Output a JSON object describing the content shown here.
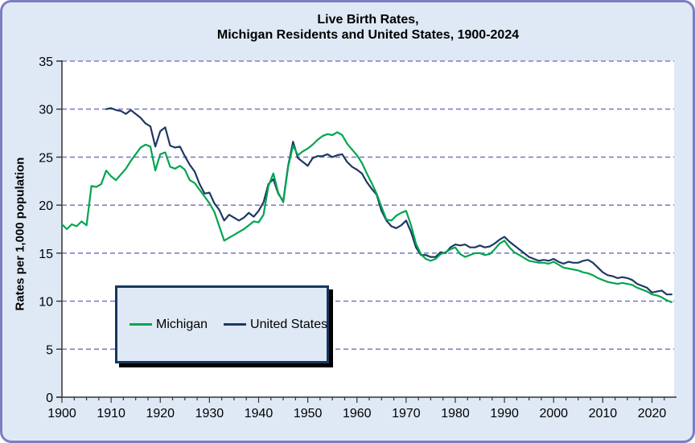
{
  "title": {
    "line1": "Live Birth Rates,",
    "line2": "Michigan Residents and United States, 1900-2024"
  },
  "colors": {
    "page_background": "#dfe9f5",
    "outer_border": "#7d7dc1",
    "plot_background": "#ffffff",
    "gridline": "#7f7fc8",
    "axis": "#333333",
    "michigan_line": "#00a550",
    "us_line": "#1f3864",
    "legend_border": "#17375e",
    "legend_shadow": "#000000",
    "text": "#000000"
  },
  "chart_data": {
    "type": "line",
    "title": "Live Birth Rates, Michigan Residents and United States, 1900-2024",
    "xlabel": "",
    "ylabel": "Rates per 1,000 population",
    "xlim": [
      1900,
      2024.5
    ],
    "ylim": [
      0,
      35
    ],
    "x_start_year": 1900,
    "x_ticks": [
      1900,
      1910,
      1920,
      1930,
      1940,
      1950,
      1960,
      1970,
      1980,
      1990,
      2000,
      2010,
      2020
    ],
    "x_minor_tick_step": 2.5,
    "y_ticks": [
      0,
      5,
      10,
      15,
      20,
      25,
      30,
      35
    ],
    "grid": "horizontal dashed",
    "legend_position": "inside lower-left",
    "series": [
      {
        "name": "Michigan",
        "color": "#00a550",
        "values": [
          18.0,
          17.5,
          18.0,
          17.8,
          18.3,
          17.9,
          22.0,
          21.9,
          22.2,
          23.6,
          23.0,
          22.6,
          23.2,
          23.8,
          24.6,
          25.3,
          26.0,
          26.3,
          26.1,
          23.6,
          25.3,
          25.5,
          24.0,
          23.8,
          24.1,
          23.7,
          22.6,
          22.3,
          21.6,
          20.9,
          20.2,
          19.3,
          17.8,
          16.3,
          16.6,
          16.9,
          17.2,
          17.5,
          17.9,
          18.3,
          18.2,
          19.0,
          22.0,
          23.3,
          21.3,
          20.3,
          24.0,
          26.2,
          25.2,
          25.6,
          25.9,
          26.3,
          26.8,
          27.2,
          27.4,
          27.3,
          27.6,
          27.3,
          26.4,
          25.8,
          25.2,
          24.4,
          23.3,
          22.3,
          21.2,
          19.8,
          18.5,
          18.4,
          18.9,
          19.2,
          19.4,
          17.9,
          16.0,
          14.9,
          14.4,
          14.2,
          14.4,
          14.9,
          15.1,
          15.4,
          15.6,
          14.9,
          14.6,
          14.8,
          15.0,
          15.0,
          14.8,
          14.9,
          15.4,
          16.0,
          16.3,
          15.6,
          15.1,
          14.8,
          14.5,
          14.2,
          14.1,
          14.0,
          14.0,
          13.9,
          14.1,
          13.8,
          13.5,
          13.4,
          13.3,
          13.2,
          13.0,
          12.9,
          12.7,
          12.4,
          12.2,
          12.0,
          11.9,
          11.8,
          11.9,
          11.8,
          11.7,
          11.4,
          11.2,
          11.0,
          10.7,
          10.6,
          10.4,
          10.1,
          9.9
        ]
      },
      {
        "name": "United States",
        "color": "#1f3864",
        "values": [
          null,
          null,
          null,
          null,
          null,
          null,
          null,
          null,
          null,
          30.0,
          30.1,
          29.9,
          29.8,
          29.5,
          29.9,
          29.5,
          29.1,
          28.5,
          28.2,
          26.1,
          27.7,
          28.1,
          26.2,
          26.0,
          26.1,
          25.1,
          24.2,
          23.5,
          22.2,
          21.2,
          21.3,
          20.2,
          19.5,
          18.4,
          19.0,
          18.7,
          18.4,
          18.7,
          19.2,
          18.8,
          19.4,
          20.3,
          22.2,
          22.7,
          21.2,
          20.4,
          24.1,
          26.6,
          24.9,
          24.5,
          24.1,
          24.9,
          25.1,
          25.1,
          25.3,
          25.0,
          25.2,
          25.3,
          24.5,
          24.0,
          23.7,
          23.3,
          22.4,
          21.7,
          21.1,
          19.4,
          18.4,
          17.8,
          17.6,
          17.9,
          18.4,
          17.2,
          15.6,
          14.8,
          14.8,
          14.6,
          14.6,
          15.1,
          15.0,
          15.6,
          15.9,
          15.8,
          15.9,
          15.6,
          15.6,
          15.8,
          15.6,
          15.7,
          16.0,
          16.4,
          16.7,
          16.2,
          15.8,
          15.4,
          15.0,
          14.6,
          14.4,
          14.2,
          14.3,
          14.2,
          14.4,
          14.1,
          13.9,
          14.1,
          14.0,
          14.0,
          14.2,
          14.3,
          14.0,
          13.5,
          13.0,
          12.7,
          12.6,
          12.4,
          12.5,
          12.4,
          12.2,
          11.8,
          11.6,
          11.4,
          10.9,
          11.0,
          11.1,
          10.7,
          10.7
        ]
      }
    ]
  }
}
